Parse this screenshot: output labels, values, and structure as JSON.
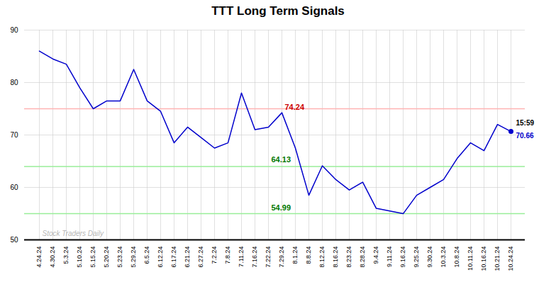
{
  "chart_data": {
    "type": "line",
    "title": "TTT Long Term Signals",
    "categories": [
      "4.24.24",
      "4.30.24",
      "5.3.24",
      "5.10.24",
      "5.15.24",
      "5.20.24",
      "5.23.24",
      "5.29.24",
      "6.5.24",
      "6.12.24",
      "6.17.24",
      "6.21.24",
      "6.27.24",
      "7.2.24",
      "7.8.24",
      "7.11.24",
      "7.16.24",
      "7.22.24",
      "7.29.24",
      "8.1.24",
      "8.8.24",
      "8.12.24",
      "8.16.24",
      "8.23.24",
      "8.28.24",
      "9.4.24",
      "9.11.24",
      "9.16.24",
      "9.25.24",
      "9.30.24",
      "10.3.24",
      "10.8.24",
      "10.11.24",
      "10.16.24",
      "10.21.24",
      "10.24.24"
    ],
    "values": [
      86.0,
      84.5,
      83.5,
      79.0,
      75.0,
      76.5,
      76.5,
      82.5,
      76.5,
      74.5,
      68.5,
      71.5,
      69.5,
      67.5,
      68.5,
      78.0,
      71.0,
      71.5,
      74.24,
      67.5,
      58.5,
      64.13,
      61.5,
      59.5,
      61.0,
      56.0,
      55.5,
      54.99,
      58.5,
      60.0,
      61.5,
      65.5,
      68.5,
      67.0,
      72.0,
      70.66
    ],
    "color": "#0000cc",
    "ylim": [
      50,
      90
    ],
    "yticks": [
      50,
      60,
      70,
      80,
      90
    ],
    "grid": true,
    "hlines": [
      {
        "value": 75.0,
        "color": "#ffb3b3"
      },
      {
        "value": 64.0,
        "color": "#99ee99"
      },
      {
        "value": 55.0,
        "color": "#99ee99"
      },
      {
        "value": 50,
        "color": "black"
      }
    ],
    "annotations": [
      {
        "text": "74.24",
        "category": "7.29.24",
        "value": 74.24,
        "color": "#cc0000"
      },
      {
        "text": "64.13",
        "category": "7.22.24",
        "value": 64.13,
        "color": "#007700"
      },
      {
        "text": "54.99",
        "category": "7.22.24",
        "value": 54.99,
        "color": "#007700"
      }
    ],
    "last_point": {
      "category": "10.24.24",
      "value": 70.66,
      "label": "70.66",
      "time": "15:59"
    },
    "watermark": "Stock Traders Daily"
  }
}
